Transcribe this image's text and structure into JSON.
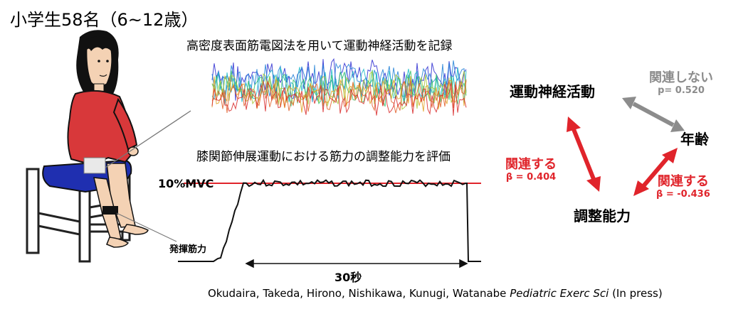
{
  "title": "小学生58名（6~12歳）",
  "emg_caption": "高密度表面筋電図法を用いて運動神経活動を記録",
  "force_caption": "膝関節伸展運動における筋力の調整能力を評価",
  "mvc_label": "10%MVC",
  "force_label": "発揮筋力",
  "duration_label": "30秒",
  "diagram": {
    "motor_node": "運動神経活動",
    "age_node": "年齢",
    "regulation_node": "調整能力",
    "unrelated": {
      "label": "関連しない",
      "stat": "p= 0.520"
    },
    "motor_regulation": {
      "label": "関連する",
      "stat": "β = 0.404"
    },
    "age_regulation": {
      "label": "関連する",
      "stat": "β = -0.436"
    }
  },
  "citation": {
    "authors": "Okudaira, Takeda, Hirono, Nishikawa, Kunugi, Watanabe",
    "journal": "Pediatric Exerc Sci",
    "status": "(In press)"
  },
  "colors": {
    "related": "#e0242b",
    "unrelated": "#8c8c8c",
    "mvc_line": "#e0242b",
    "chair_seat": "#1f2fb0",
    "shirt": "#d8383a"
  }
}
